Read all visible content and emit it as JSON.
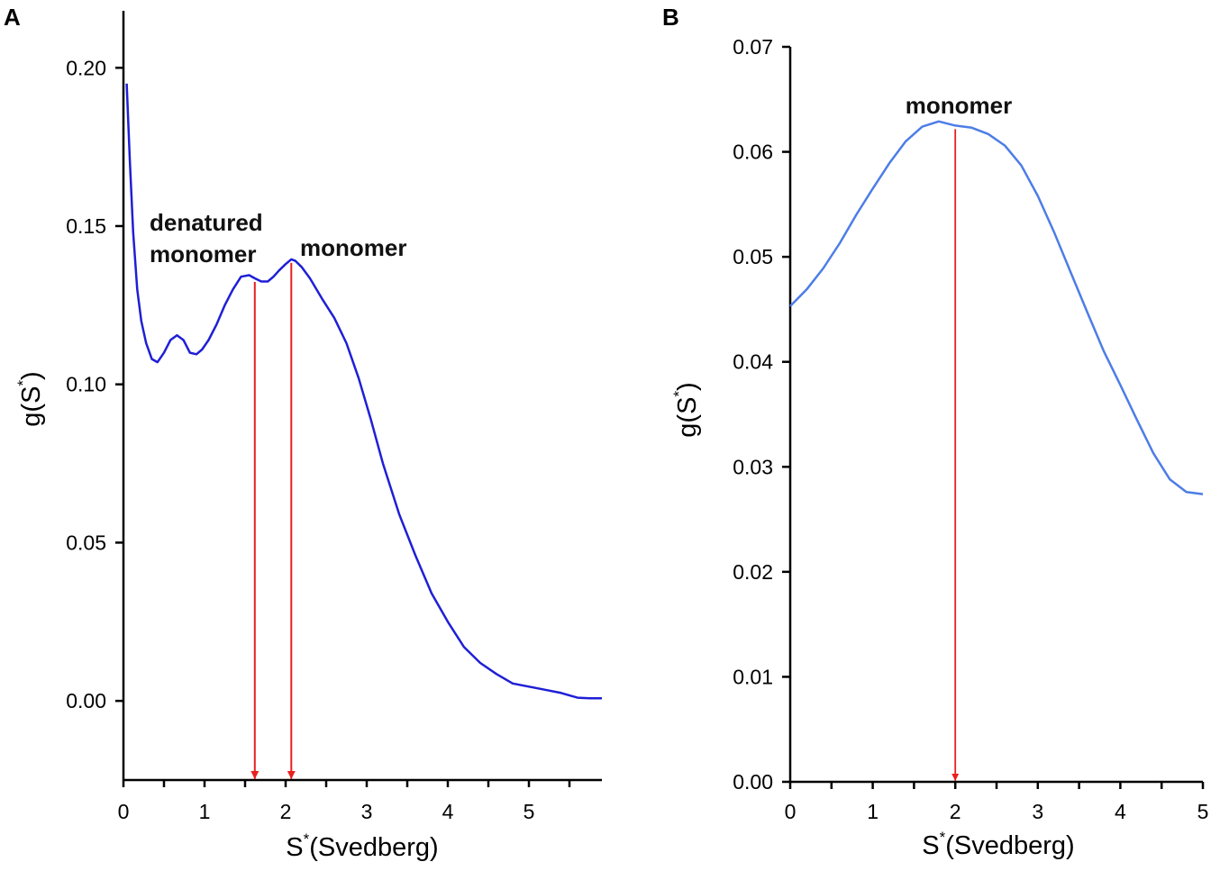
{
  "chart_data": [
    {
      "panel": "A",
      "type": "line",
      "xlabel_main": "S",
      "xlabel_sup": "*",
      "xlabel_rest": "(Svedberg)",
      "ylabel_main": "g(S",
      "ylabel_sup": "*",
      "ylabel_rest": ")",
      "xlim": [
        0,
        5.9
      ],
      "ylim": [
        -0.025,
        0.218
      ],
      "xticks": [
        0,
        1,
        2,
        3,
        4,
        5
      ],
      "xtick_labels": [
        "0",
        "1",
        "2",
        "3",
        "4",
        "5"
      ],
      "yticks": [
        0.0,
        0.05,
        0.1,
        0.15,
        0.2
      ],
      "ytick_labels": [
        "0.00",
        "0.05",
        "0.10",
        "0.15",
        "0.20"
      ],
      "line_color": "#1f1fd6",
      "arrow_color": "#e8201f",
      "series": [
        {
          "name": "g(S*)",
          "x": [
            0.04,
            0.08,
            0.12,
            0.17,
            0.22,
            0.28,
            0.35,
            0.42,
            0.5,
            0.58,
            0.66,
            0.74,
            0.82,
            0.9,
            0.97,
            1.05,
            1.15,
            1.25,
            1.35,
            1.45,
            1.55,
            1.62,
            1.7,
            1.78,
            1.85,
            1.92,
            2.0,
            2.07,
            2.12,
            2.2,
            2.3,
            2.45,
            2.6,
            2.75,
            2.9,
            3.05,
            3.2,
            3.4,
            3.6,
            3.8,
            4.0,
            4.2,
            4.4,
            4.6,
            4.8,
            5.0,
            5.2,
            5.4,
            5.6,
            5.75,
            5.9
          ],
          "y": [
            0.195,
            0.17,
            0.148,
            0.13,
            0.12,
            0.113,
            0.108,
            0.107,
            0.11,
            0.114,
            0.1155,
            0.114,
            0.11,
            0.1095,
            0.111,
            0.114,
            0.119,
            0.125,
            0.13,
            0.134,
            0.1345,
            0.1335,
            0.1325,
            0.1325,
            0.134,
            0.136,
            0.138,
            0.1395,
            0.139,
            0.137,
            0.1335,
            0.127,
            0.121,
            0.113,
            0.102,
            0.089,
            0.075,
            0.059,
            0.046,
            0.034,
            0.025,
            0.017,
            0.012,
            0.0085,
            0.0055,
            0.0045,
            0.0035,
            0.0025,
            0.001,
            0.0008,
            0.0008
          ]
        }
      ],
      "arrows": [
        {
          "x": 1.62,
          "y_top": 0.1335,
          "label_lines": [
            "denatured",
            "monomer"
          ]
        },
        {
          "x": 2.07,
          "y_top": 0.1395,
          "label_lines": [
            "monomer"
          ]
        }
      ]
    },
    {
      "panel": "B",
      "type": "line",
      "xlabel_main": "S",
      "xlabel_sup": "*",
      "xlabel_rest": "(Svedberg)",
      "ylabel_main": "g(S",
      "ylabel_sup": "*",
      "ylabel_rest": ")",
      "xlim": [
        0,
        5
      ],
      "ylim": [
        0,
        0.07
      ],
      "xticks": [
        0,
        1,
        2,
        3,
        4,
        5
      ],
      "xtick_labels": [
        "0",
        "1",
        "2",
        "3",
        "4",
        "5"
      ],
      "yticks": [
        0.0,
        0.01,
        0.02,
        0.03,
        0.04,
        0.05,
        0.06,
        0.07
      ],
      "ytick_labels": [
        "0.00",
        "0.01",
        "0.02",
        "0.03",
        "0.04",
        "0.05",
        "0.06",
        "0.07"
      ],
      "line_color": "#4d7de6",
      "arrow_color": "#e8201f",
      "series": [
        {
          "name": "g(S*)",
          "x": [
            0,
            0.2,
            0.4,
            0.6,
            0.8,
            1.0,
            1.2,
            1.4,
            1.6,
            1.8,
            2.0,
            2.2,
            2.4,
            2.6,
            2.8,
            3.0,
            3.2,
            3.4,
            3.6,
            3.8,
            4.0,
            4.2,
            4.4,
            4.6,
            4.8,
            5.0
          ],
          "y": [
            0.0453,
            0.0469,
            0.0489,
            0.0513,
            0.054,
            0.0565,
            0.0589,
            0.061,
            0.0624,
            0.0629,
            0.0625,
            0.0623,
            0.0617,
            0.0606,
            0.0587,
            0.0558,
            0.0523,
            0.0485,
            0.0447,
            0.041,
            0.0378,
            0.0345,
            0.0313,
            0.0288,
            0.0276,
            0.0274
          ]
        }
      ],
      "arrows": [
        {
          "x": 2.0,
          "y_top": 0.0625,
          "label_lines": [
            "monomer"
          ]
        }
      ]
    }
  ]
}
